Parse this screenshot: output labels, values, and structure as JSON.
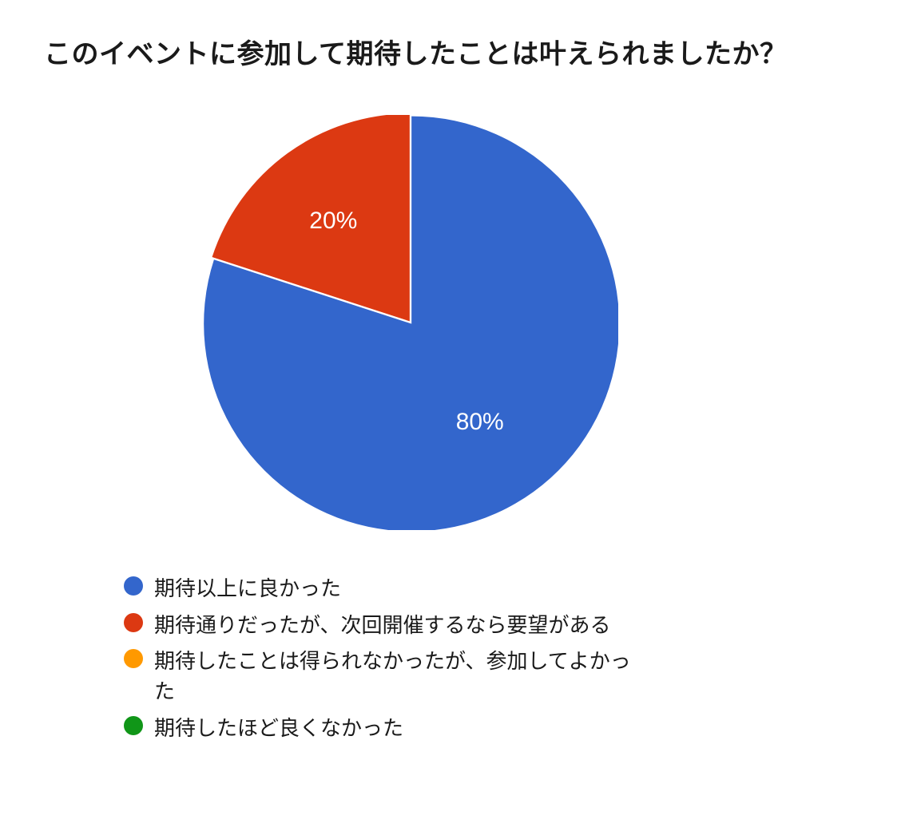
{
  "title": "このイベントに参加して期待したことは叶えられましたか？",
  "chart": {
    "type": "pie",
    "background_color": "#ffffff",
    "title_fontsize": 34,
    "title_color": "#1a1a1a",
    "label_fontsize": 30,
    "label_color": "#ffffff",
    "legend_fontsize": 26,
    "legend_text_color": "#1a1a1a",
    "legend_marker_radius": 12,
    "radius": 260,
    "start_angle": -90,
    "slices": [
      {
        "label": "期待以上に良かった",
        "value": 80,
        "percent_label": "80%",
        "color": "#3366cc"
      },
      {
        "label": "期待通りだったが、次回開催するなら要望がある",
        "value": 20,
        "percent_label": "20%",
        "color": "#dc3912"
      },
      {
        "label": "期待したことは得られなかったが、参加してよかった",
        "value": 0,
        "percent_label": "",
        "color": "#ff9900"
      },
      {
        "label": "期待したほど良くなかった",
        "value": 0,
        "percent_label": "",
        "color": "#109618"
      }
    ]
  }
}
